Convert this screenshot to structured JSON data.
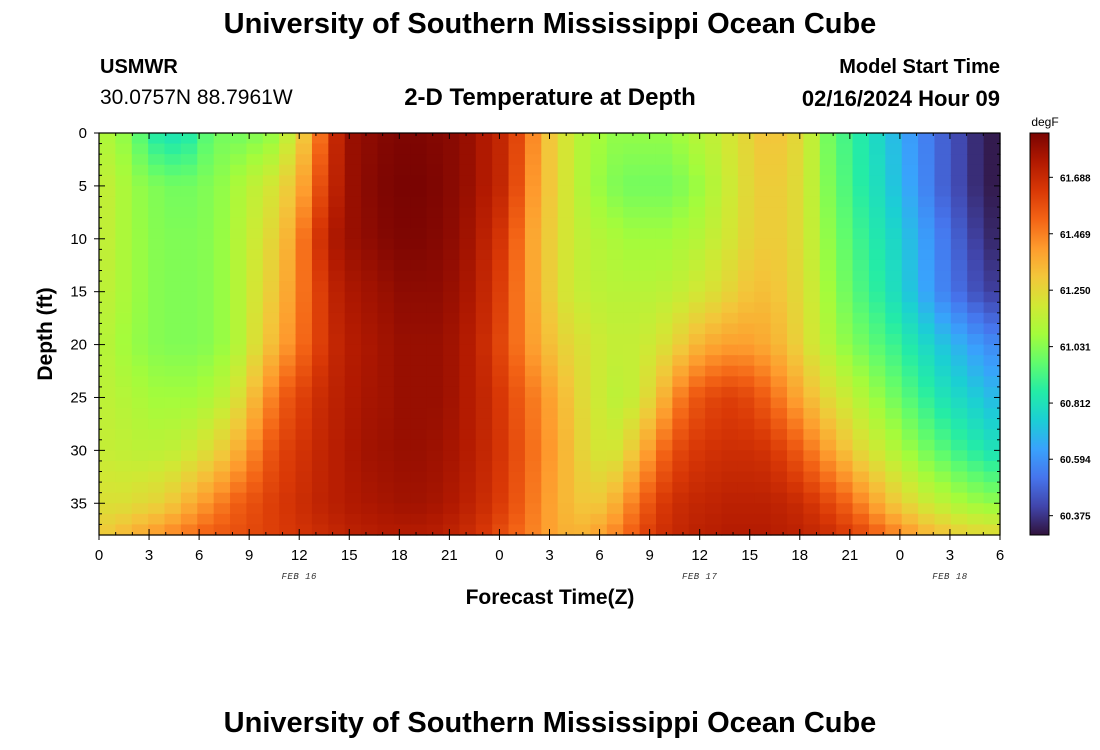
{
  "page": {
    "title_top": "University of Southern Mississippi Ocean Cube",
    "title_bottom": "University of Southern Mississippi Ocean Cube",
    "station": "USMWR",
    "coordinates": "30.0757N  88.7961W",
    "chart_title": "2-D Temperature at Depth",
    "model_start_label": "Model Start Time",
    "model_start_value": "02/16/2024 Hour 09"
  },
  "chart_data": {
    "type": "heatmap",
    "title": "2-D Temperature at Depth",
    "xlabel": "Forecast Time(Z)",
    "ylabel": "Depth (ft)",
    "x_tick_labels": [
      "0",
      "3",
      "6",
      "9",
      "12",
      "15",
      "18",
      "21",
      "0",
      "3",
      "6",
      "9",
      "12",
      "15",
      "18",
      "21",
      "0",
      "3",
      "6"
    ],
    "x_hours": [
      0,
      3,
      6,
      9,
      12,
      15,
      18,
      21,
      24,
      27,
      30,
      33,
      36,
      39,
      42,
      45,
      48,
      51,
      54
    ],
    "date_labels": [
      {
        "label": "FEB 16",
        "hour": 12
      },
      {
        "label": "FEB 17",
        "hour": 36
      },
      {
        "label": "FEB 18",
        "hour": 51
      }
    ],
    "y_ticks": [
      0,
      5,
      10,
      15,
      20,
      25,
      30,
      35
    ],
    "ylim": [
      0,
      38
    ],
    "xlim": [
      0,
      54
    ],
    "colorbar": {
      "unit": "degF",
      "min": 60.3,
      "max": 61.86,
      "tick_labels": [
        "61.688",
        "61.469",
        "61.250",
        "61.031",
        "60.812",
        "60.594",
        "60.375"
      ],
      "tick_values": [
        61.688,
        61.469,
        61.25,
        61.031,
        60.812,
        60.594,
        60.375
      ],
      "colormap": [
        "#30123b",
        "#4145ab",
        "#4675ed",
        "#39a2fc",
        "#1bcfd4",
        "#24eca6",
        "#61fc6c",
        "#a4fc3b",
        "#d1e834",
        "#f3c63a",
        "#fe9b2d",
        "#f36315",
        "#d93806",
        "#b11901",
        "#7a0402"
      ]
    },
    "series_profiles": {
      "depths": [
        0,
        5,
        10,
        15,
        20,
        25,
        30,
        35,
        38
      ],
      "hours": [
        0,
        1,
        2,
        3,
        4,
        5,
        6,
        7,
        8,
        9,
        10,
        11,
        12,
        13,
        14,
        15,
        16,
        17,
        18,
        19,
        20,
        21,
        22,
        23,
        24,
        25,
        26,
        27,
        28,
        29,
        30,
        31,
        32,
        33,
        34,
        35,
        36,
        37,
        38,
        39,
        40,
        41,
        42,
        43,
        44,
        45,
        46,
        47,
        48,
        49,
        50,
        51,
        52,
        53,
        54
      ],
      "values": [
        [
          61.1,
          61.05,
          60.95,
          60.85,
          60.82,
          60.85,
          60.95,
          61.0,
          61.0,
          61.02,
          61.05,
          61.15,
          61.3,
          61.5,
          61.7,
          61.8,
          61.82,
          61.84,
          61.85,
          61.85,
          61.84,
          61.83,
          61.8,
          61.75,
          61.7,
          61.6,
          61.45,
          61.3,
          61.2,
          61.12,
          61.08,
          61.05,
          61.05,
          61.05,
          61.05,
          61.08,
          61.12,
          61.15,
          61.2,
          61.25,
          61.3,
          61.3,
          61.25,
          61.15,
          61.0,
          60.92,
          60.85,
          60.78,
          60.7,
          60.62,
          60.55,
          60.48,
          60.42,
          60.36,
          60.32
        ],
        [
          61.15,
          61.1,
          61.05,
          61.02,
          61.0,
          61.0,
          61.02,
          61.05,
          61.1,
          61.15,
          61.2,
          61.28,
          61.4,
          61.58,
          61.72,
          61.8,
          61.83,
          61.85,
          61.86,
          61.86,
          61.85,
          61.83,
          61.8,
          61.75,
          61.7,
          61.58,
          61.42,
          61.3,
          61.2,
          61.12,
          61.06,
          61.02,
          61.0,
          61.0,
          61.0,
          61.02,
          61.06,
          61.12,
          61.18,
          61.24,
          61.28,
          61.28,
          61.24,
          61.15,
          61.02,
          60.94,
          60.86,
          60.8,
          60.72,
          60.64,
          60.56,
          60.48,
          60.42,
          60.36,
          60.32
        ],
        [
          61.15,
          61.1,
          61.06,
          61.03,
          61.02,
          61.02,
          61.03,
          61.06,
          61.12,
          61.18,
          61.25,
          61.35,
          61.5,
          61.66,
          61.76,
          61.8,
          61.82,
          61.84,
          61.85,
          61.85,
          61.84,
          61.82,
          61.78,
          61.72,
          61.65,
          61.52,
          61.38,
          61.28,
          61.2,
          61.15,
          61.12,
          61.1,
          61.08,
          61.08,
          61.08,
          61.1,
          61.12,
          61.16,
          61.2,
          61.25,
          61.28,
          61.28,
          61.24,
          61.16,
          61.05,
          60.97,
          60.9,
          60.84,
          60.78,
          60.7,
          60.62,
          60.54,
          60.47,
          60.4,
          60.35
        ],
        [
          61.14,
          61.1,
          61.06,
          61.03,
          61.02,
          61.02,
          61.03,
          61.06,
          61.12,
          61.2,
          61.28,
          61.38,
          61.5,
          61.62,
          61.72,
          61.76,
          61.78,
          61.8,
          61.82,
          61.82,
          61.82,
          61.8,
          61.76,
          61.7,
          61.62,
          61.5,
          61.38,
          61.28,
          61.2,
          61.16,
          61.14,
          61.13,
          61.13,
          61.13,
          61.14,
          61.16,
          61.19,
          61.22,
          61.26,
          61.3,
          61.32,
          61.3,
          61.25,
          61.18,
          61.08,
          61.0,
          60.93,
          60.87,
          60.8,
          60.72,
          60.64,
          60.56,
          60.5,
          60.44,
          60.4
        ],
        [
          61.12,
          61.08,
          61.05,
          61.03,
          61.02,
          61.02,
          61.03,
          61.06,
          61.12,
          61.22,
          61.32,
          61.42,
          61.52,
          61.62,
          61.7,
          61.74,
          61.76,
          61.78,
          61.8,
          61.8,
          61.8,
          61.78,
          61.74,
          61.68,
          61.6,
          61.5,
          61.4,
          61.32,
          61.26,
          61.22,
          61.18,
          61.16,
          61.16,
          61.18,
          61.22,
          61.28,
          61.34,
          61.38,
          61.4,
          61.4,
          61.38,
          61.34,
          61.28,
          61.2,
          61.12,
          61.05,
          61.0,
          60.95,
          60.9,
          60.84,
          60.78,
          60.72,
          60.67,
          60.62,
          60.58
        ],
        [
          61.14,
          61.12,
          61.1,
          61.08,
          61.08,
          61.08,
          61.1,
          61.14,
          61.22,
          61.34,
          61.46,
          61.56,
          61.62,
          61.68,
          61.72,
          61.75,
          61.77,
          61.78,
          61.8,
          61.8,
          61.8,
          61.78,
          61.74,
          61.7,
          61.64,
          61.56,
          61.48,
          61.4,
          61.32,
          61.24,
          61.18,
          61.14,
          61.16,
          61.24,
          61.36,
          61.48,
          61.56,
          61.6,
          61.62,
          61.6,
          61.55,
          61.48,
          61.4,
          61.32,
          61.24,
          61.18,
          61.12,
          61.06,
          61.0,
          60.94,
          60.88,
          60.82,
          60.78,
          60.74,
          60.7
        ],
        [
          61.16,
          61.15,
          61.14,
          61.14,
          61.15,
          61.18,
          61.22,
          61.28,
          61.36,
          61.46,
          61.56,
          61.62,
          61.66,
          61.7,
          61.73,
          61.76,
          61.78,
          61.79,
          61.8,
          61.8,
          61.79,
          61.77,
          61.74,
          61.7,
          61.65,
          61.58,
          61.5,
          61.42,
          61.34,
          61.26,
          61.2,
          61.2,
          61.28,
          61.4,
          61.52,
          61.6,
          61.64,
          61.66,
          61.67,
          61.67,
          61.66,
          61.62,
          61.56,
          61.48,
          61.4,
          61.32,
          61.24,
          61.18,
          61.12,
          61.06,
          61.0,
          60.95,
          60.9,
          60.86,
          60.82
        ],
        [
          61.22,
          61.22,
          61.24,
          61.26,
          61.3,
          61.36,
          61.42,
          61.48,
          61.54,
          61.58,
          61.62,
          61.65,
          61.68,
          61.71,
          61.73,
          61.75,
          61.76,
          61.77,
          61.78,
          61.78,
          61.77,
          61.75,
          61.72,
          61.68,
          61.63,
          61.56,
          61.48,
          61.4,
          61.34,
          61.3,
          61.3,
          61.36,
          61.46,
          61.56,
          61.64,
          61.68,
          61.7,
          61.71,
          61.72,
          61.72,
          61.72,
          61.71,
          61.69,
          61.65,
          61.6,
          61.54,
          61.46,
          61.38,
          61.3,
          61.24,
          61.18,
          61.14,
          61.1,
          61.07,
          61.05
        ],
        [
          61.3,
          61.34,
          61.38,
          61.42,
          61.46,
          61.5,
          61.54,
          61.56,
          61.58,
          61.6,
          61.62,
          61.64,
          61.66,
          61.68,
          61.7,
          61.72,
          61.73,
          61.74,
          61.74,
          61.74,
          61.73,
          61.71,
          61.68,
          61.64,
          61.58,
          61.52,
          61.46,
          61.4,
          61.36,
          61.36,
          61.4,
          61.46,
          61.54,
          61.62,
          61.67,
          61.7,
          61.72,
          61.73,
          61.74,
          61.74,
          61.74,
          61.73,
          61.72,
          61.7,
          61.68,
          61.64,
          61.6,
          61.54,
          61.48,
          61.42,
          61.36,
          61.32,
          61.28,
          61.26,
          61.25
        ]
      ]
    }
  }
}
